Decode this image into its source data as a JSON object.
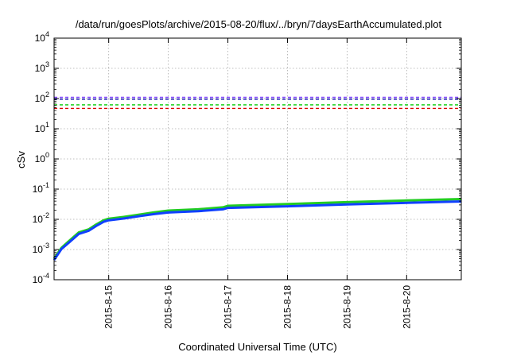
{
  "chart_data": {
    "type": "line",
    "title": "/data/run/goesPlots/archive/2015-08-20/flux/../bryn/7daysEarthAccumulated.plot",
    "xlabel": "Coordinated Universal Time (UTC)",
    "ylabel": "cSv",
    "yscale": "log",
    "ylim": [
      0.0001,
      10000
    ],
    "xlim": [
      "2015-08-14T02:00",
      "2015-08-20T22:00"
    ],
    "grid": true,
    "x_ticks": [
      "2015-8-15",
      "2015-8-16",
      "2015-8-17",
      "2015-8-18",
      "2015-8-19",
      "2015-8-20"
    ],
    "y_ticks": [
      {
        "base": "10",
        "exp": "-4",
        "value": 0.0001
      },
      {
        "base": "10",
        "exp": "-3",
        "value": 0.001
      },
      {
        "base": "10",
        "exp": "-2",
        "value": 0.01
      },
      {
        "base": "10",
        "exp": "-1",
        "value": 0.1
      },
      {
        "base": "10",
        "exp": "0",
        "value": 1
      },
      {
        "base": "10",
        "exp": "1",
        "value": 10
      },
      {
        "base": "10",
        "exp": "2",
        "value": 100
      },
      {
        "base": "10",
        "exp": "3",
        "value": 1000
      },
      {
        "base": "10",
        "exp": "4",
        "value": 10000
      }
    ],
    "thresholds": [
      {
        "value": 110,
        "color": "#8040ff"
      },
      {
        "value": 95,
        "color": "#0000aa"
      },
      {
        "value": 62,
        "color": "#00cc00"
      },
      {
        "value": 47,
        "color": "#dd0000"
      }
    ],
    "series": [
      {
        "color": "#22cc22",
        "x": [
          "2015-08-14T02:00",
          "2015-08-14T05:00",
          "2015-08-14T08:00",
          "2015-08-14T12:00",
          "2015-08-14T16:00",
          "2015-08-14T19:00",
          "2015-08-14T22:00",
          "2015-08-15T00:00",
          "2015-08-15T06:00",
          "2015-08-15T12:00",
          "2015-08-15T18:00",
          "2015-08-16T00:00",
          "2015-08-16T12:00",
          "2015-08-16T22:00",
          "2015-08-17T00:00",
          "2015-08-18T00:00",
          "2015-08-19T00:00",
          "2015-08-20T00:00",
          "2015-08-20T22:00"
        ],
        "y": [
          0.0005,
          0.00115,
          0.0019,
          0.0037,
          0.0047,
          0.0068,
          0.0093,
          0.0105,
          0.012,
          0.0142,
          0.0168,
          0.0195,
          0.0215,
          0.025,
          0.028,
          0.032,
          0.037,
          0.042,
          0.047
        ]
      },
      {
        "color": "#1040ff",
        "x": [
          "2015-08-14T02:00",
          "2015-08-14T05:00",
          "2015-08-14T08:00",
          "2015-08-14T12:00",
          "2015-08-14T16:00",
          "2015-08-14T19:00",
          "2015-08-14T22:00",
          "2015-08-15T00:00",
          "2015-08-15T06:00",
          "2015-08-15T12:00",
          "2015-08-15T18:00",
          "2015-08-16T00:00",
          "2015-08-16T12:00",
          "2015-08-16T22:00",
          "2015-08-17T00:00",
          "2015-08-18T00:00",
          "2015-08-19T00:00",
          "2015-08-20T00:00",
          "2015-08-20T22:00"
        ],
        "y": [
          0.00045,
          0.00105,
          0.0017,
          0.0033,
          0.0042,
          0.0061,
          0.0083,
          0.0093,
          0.0106,
          0.0126,
          0.0148,
          0.0168,
          0.0185,
          0.0215,
          0.024,
          0.027,
          0.031,
          0.035,
          0.039
        ]
      }
    ]
  }
}
